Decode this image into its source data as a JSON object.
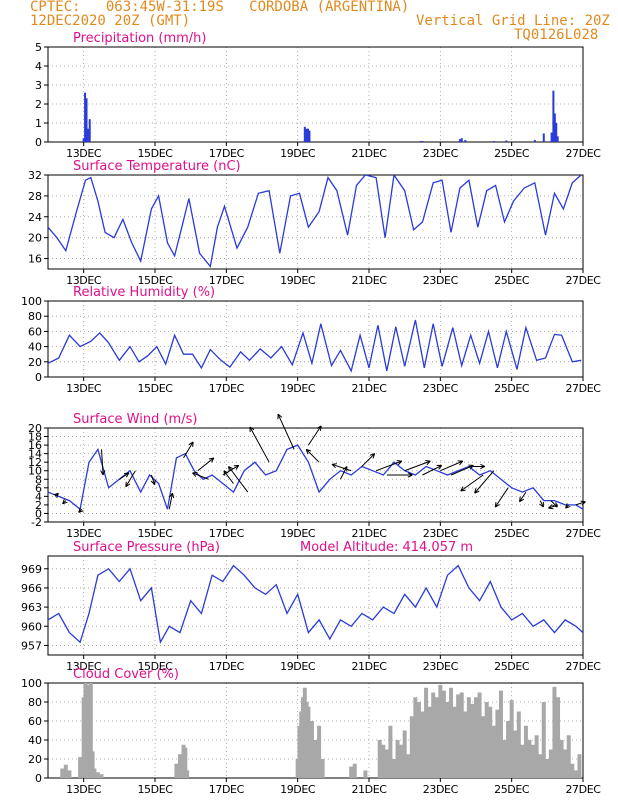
{
  "header": {
    "line1": "CPTEC:   063:45W-31:19S   CORDOBA (ARGENTINA)",
    "line2": "12DEC2020 20Z (GMT)",
    "grid_note": "Vertical Grid Line: 20Z",
    "code": "TQ0126L028"
  },
  "colors": {
    "header": "#e08a1e",
    "panel_title": "#e0108a",
    "series": "#2a3bd8",
    "cloud": "#a8a8a8",
    "wind_arrow": "#000000",
    "grid": "#9a9a9a"
  },
  "chart_data": [
    {
      "type": "bar",
      "title": "Precipitation (mm/h)",
      "xlim": [
        12.0,
        27.0
      ],
      "ylim": [
        0,
        5
      ],
      "yticks": [
        0,
        1,
        2,
        3,
        4,
        5
      ],
      "x_tick_values": [
        13,
        15,
        17,
        19,
        21,
        23,
        25,
        27
      ],
      "x_tick_labels": [
        "13DEC",
        "15DEC",
        "17DEC",
        "19DEC",
        "21DEC",
        "23DEC",
        "25DEC",
        "27DEC"
      ],
      "grid": true,
      "x": [
        13.0,
        13.04,
        13.08,
        13.12,
        13.17,
        19.2,
        19.25,
        19.29,
        19.33,
        22.45,
        22.5,
        23.55,
        23.6,
        23.7,
        24.5,
        24.85,
        25.65,
        25.9,
        26.12,
        26.17,
        26.21,
        26.25,
        26.29
      ],
      "values": [
        0.2,
        2.6,
        2.3,
        0.7,
        1.2,
        0.8,
        0.7,
        0.7,
        0.6,
        0.05,
        0.05,
        0.15,
        0.2,
        0.1,
        0.05,
        0.08,
        0.1,
        0.45,
        0.5,
        2.7,
        1.5,
        1.0,
        0.3
      ]
    },
    {
      "type": "line",
      "title": "Surface Temperature (nC)",
      "xlim": [
        12.0,
        27.0
      ],
      "ylim": [
        14,
        32
      ],
      "yticks": [
        16,
        20,
        24,
        28,
        32
      ],
      "x_tick_values": [
        13,
        15,
        17,
        19,
        21,
        23,
        25,
        27
      ],
      "x_tick_labels": [
        "13DEC",
        "15DEC",
        "17DEC",
        "19DEC",
        "21DEC",
        "23DEC",
        "25DEC",
        "27DEC"
      ],
      "grid": true,
      "x": [
        12.0,
        12.25,
        12.5,
        12.8,
        13.05,
        13.2,
        13.4,
        13.6,
        13.85,
        14.1,
        14.35,
        14.6,
        14.9,
        15.1,
        15.35,
        15.55,
        15.75,
        15.95,
        16.25,
        16.55,
        16.75,
        16.95,
        17.3,
        17.6,
        17.9,
        18.2,
        18.5,
        18.8,
        19.05,
        19.3,
        19.6,
        19.85,
        20.1,
        20.4,
        20.65,
        20.9,
        21.2,
        21.45,
        21.7,
        22.0,
        22.25,
        22.5,
        22.8,
        23.05,
        23.3,
        23.55,
        23.8,
        24.05,
        24.3,
        24.55,
        24.8,
        25.05,
        25.35,
        25.65,
        25.95,
        26.2,
        26.45,
        26.7,
        26.95
      ],
      "y": [
        22,
        20,
        17.5,
        25,
        31,
        31.5,
        27,
        21,
        20,
        23.5,
        19,
        15.5,
        25.5,
        28,
        19,
        16.5,
        22,
        27.5,
        17,
        14.5,
        22,
        26,
        18,
        22,
        28.5,
        29,
        17,
        28,
        28.5,
        22,
        25,
        31.5,
        29,
        20.5,
        30,
        32,
        31.5,
        20,
        32,
        29,
        21.5,
        23,
        30.5,
        31,
        21,
        29.5,
        31,
        22,
        29,
        30,
        23,
        27,
        29.5,
        30.5,
        20.5,
        28.5,
        25.5,
        30.5,
        32
      ]
    },
    {
      "type": "line",
      "title": "Relative Humidity (%)",
      "xlim": [
        12.0,
        27.0
      ],
      "ylim": [
        0,
        100
      ],
      "yticks": [
        0,
        20,
        40,
        60,
        80,
        100
      ],
      "x_tick_values": [
        13,
        15,
        17,
        19,
        21,
        23,
        25,
        27
      ],
      "x_tick_labels": [
        "13DEC",
        "15DEC",
        "17DEC",
        "19DEC",
        "21DEC",
        "23DEC",
        "25DEC",
        "27DEC"
      ],
      "grid": true,
      "x": [
        12.0,
        12.3,
        12.6,
        12.9,
        13.2,
        13.45,
        13.7,
        14.0,
        14.3,
        14.55,
        14.8,
        15.05,
        15.3,
        15.55,
        15.8,
        16.05,
        16.3,
        16.55,
        16.85,
        17.1,
        17.4,
        17.65,
        17.95,
        18.25,
        18.55,
        18.85,
        19.15,
        19.4,
        19.65,
        19.95,
        20.2,
        20.5,
        20.75,
        21.0,
        21.25,
        21.5,
        21.75,
        22.0,
        22.3,
        22.55,
        22.8,
        23.05,
        23.35,
        23.6,
        23.85,
        24.1,
        24.35,
        24.6,
        24.85,
        25.15,
        25.4,
        25.7,
        25.95,
        26.2,
        26.4,
        26.7,
        26.95
      ],
      "y": [
        18,
        25,
        55,
        40,
        47,
        58,
        45,
        22,
        40,
        20,
        28,
        40,
        17,
        55,
        30,
        30,
        12,
        36,
        22,
        13,
        33,
        22,
        37,
        25,
        40,
        16,
        58,
        18,
        70,
        15,
        35,
        8,
        55,
        12,
        68,
        8,
        66,
        14,
        75,
        12,
        70,
        14,
        65,
        15,
        55,
        18,
        60,
        12,
        60,
        10,
        65,
        22,
        25,
        56,
        55,
        20,
        22
      ]
    },
    {
      "type": "line",
      "title": "Surface Wind (m/s)",
      "xlim": [
        12.0,
        27.0
      ],
      "ylim": [
        -2,
        20
      ],
      "yticks": [
        -2,
        0,
        2,
        4,
        6,
        8,
        10,
        12,
        14,
        16,
        18,
        20
      ],
      "x_tick_values": [
        13,
        15,
        17,
        19,
        21,
        23,
        25,
        27
      ],
      "x_tick_labels": [
        "13DEC",
        "15DEC",
        "17DEC",
        "19DEC",
        "21DEC",
        "23DEC",
        "25DEC",
        "27DEC"
      ],
      "grid": true,
      "x": [
        12.0,
        12.3,
        12.6,
        12.9,
        13.15,
        13.4,
        13.7,
        14.0,
        14.3,
        14.6,
        14.85,
        15.1,
        15.35,
        15.6,
        15.85,
        16.1,
        16.35,
        16.6,
        16.9,
        17.2,
        17.5,
        17.8,
        18.1,
        18.4,
        18.7,
        19.0,
        19.3,
        19.6,
        19.9,
        20.2,
        20.5,
        20.8,
        21.1,
        21.4,
        21.7,
        22.0,
        22.3,
        22.6,
        22.9,
        23.2,
        23.5,
        23.8,
        24.1,
        24.4,
        24.7,
        25.0,
        25.3,
        25.6,
        25.9,
        26.2,
        26.5,
        26.8,
        27.0
      ],
      "y": [
        5,
        4,
        3,
        1,
        12,
        15,
        6,
        8,
        10,
        5,
        9,
        7,
        1,
        13,
        14,
        10,
        8,
        9,
        7,
        5,
        10,
        12,
        9,
        10,
        15,
        16,
        12,
        5,
        8,
        10,
        9,
        11,
        10,
        9,
        12,
        10,
        9,
        11,
        10,
        9,
        10,
        11,
        9,
        10,
        8,
        6,
        5,
        6,
        3,
        3,
        2,
        2,
        1
      ],
      "vectors": {
        "x": [
          12.2,
          12.5,
          12.95,
          13.5,
          14.0,
          14.45,
          14.9,
          15.4,
          15.8,
          16.2,
          16.5,
          16.9,
          17.2,
          17.6,
          18.2,
          18.9,
          19.3,
          19.6,
          20.2,
          20.5,
          20.8,
          21.2,
          21.5,
          22.0,
          22.5,
          23.0,
          23.3,
          23.8,
          24.2,
          24.5,
          24.9,
          25.4,
          25.8,
          26.1,
          26.3,
          26.6,
          26.8
        ],
        "u": [
          1,
          -1,
          -1,
          0.5,
          3,
          -3,
          1,
          1,
          3,
          5,
          -5,
          5,
          -3,
          -6,
          -6,
          -5,
          4,
          -4,
          2,
          -6,
          4,
          8,
          8,
          8,
          6,
          7,
          7,
          5,
          -7,
          -6,
          -4,
          -2,
          1,
          2,
          -3,
          -1,
          3
        ],
        "v": [
          1,
          -1,
          -1,
          -8,
          2,
          -5,
          -3,
          5,
          5,
          4,
          2,
          3,
          4,
          8,
          11,
          11,
          6,
          4,
          4,
          2,
          4,
          3,
          0,
          3,
          3,
          3,
          3,
          0,
          -5,
          -7,
          -6,
          -3,
          -2,
          -2,
          -1,
          -1,
          1
        ]
      }
    },
    {
      "type": "line",
      "title": "Surface Pressure (hPa)",
      "annotation": "Model Altitude: 414.057 m",
      "xlim": [
        12.0,
        27.0
      ],
      "ylim": [
        955.5,
        971
      ],
      "yticks": [
        957,
        960,
        963,
        966,
        969
      ],
      "x_tick_values": [
        13,
        15,
        17,
        19,
        21,
        23,
        25,
        27
      ],
      "x_tick_labels": [
        "13DEC",
        "15DEC",
        "17DEC",
        "19DEC",
        "21DEC",
        "23DEC",
        "25DEC",
        "27DEC"
      ],
      "grid": true,
      "x": [
        12.0,
        12.3,
        12.6,
        12.9,
        13.15,
        13.4,
        13.7,
        14.0,
        14.3,
        14.6,
        14.9,
        15.15,
        15.4,
        15.7,
        16.0,
        16.3,
        16.6,
        16.9,
        17.2,
        17.5,
        17.8,
        18.1,
        18.4,
        18.7,
        19.0,
        19.3,
        19.6,
        19.9,
        20.2,
        20.5,
        20.8,
        21.1,
        21.4,
        21.7,
        22.0,
        22.3,
        22.6,
        22.9,
        23.2,
        23.5,
        23.8,
        24.1,
        24.4,
        24.7,
        25.0,
        25.3,
        25.6,
        25.9,
        26.2,
        26.5,
        26.8,
        27.0
      ],
      "y": [
        961,
        962,
        959,
        957.5,
        962,
        968,
        969,
        967,
        969,
        964,
        966,
        957.5,
        960,
        959,
        964,
        962,
        968,
        967,
        969.5,
        968,
        966,
        965,
        966.5,
        962,
        965,
        959,
        961,
        958,
        961,
        960,
        962,
        961,
        963,
        962,
        965,
        963,
        966,
        963,
        968,
        969.5,
        966,
        964,
        967,
        963,
        961,
        962,
        960,
        961,
        959,
        961,
        960,
        959
      ]
    },
    {
      "type": "bar",
      "title": "Cloud Cover (%)",
      "xlim": [
        12.0,
        27.0
      ],
      "ylim": [
        0,
        100
      ],
      "yticks": [
        0,
        20,
        40,
        60,
        80,
        100
      ],
      "x_tick_values": [
        13,
        15,
        17,
        19,
        21,
        23,
        25,
        27
      ],
      "x_tick_labels": [
        "13DEC",
        "15DEC",
        "17DEC",
        "19DEC",
        "21DEC",
        "23DEC",
        "25DEC",
        "27DEC"
      ],
      "grid": true,
      "x": [
        12.4,
        12.5,
        12.6,
        12.9,
        13.0,
        13.05,
        13.1,
        13.15,
        13.2,
        13.25,
        13.3,
        13.4,
        13.5,
        15.6,
        15.7,
        15.8,
        15.85,
        15.9,
        19.0,
        19.05,
        19.1,
        19.15,
        19.2,
        19.25,
        19.3,
        19.4,
        19.5,
        19.6,
        19.7,
        20.5,
        20.6,
        20.9,
        21.3,
        21.4,
        21.5,
        21.6,
        21.7,
        21.8,
        21.9,
        22.0,
        22.1,
        22.2,
        22.3,
        22.4,
        22.5,
        22.6,
        22.7,
        22.8,
        22.9,
        23.0,
        23.1,
        23.2,
        23.3,
        23.4,
        23.5,
        23.6,
        23.7,
        23.8,
        23.9,
        24.0,
        24.1,
        24.2,
        24.3,
        24.4,
        24.5,
        24.6,
        24.7,
        24.8,
        24.9,
        25.0,
        25.1,
        25.2,
        25.3,
        25.4,
        25.5,
        25.6,
        25.7,
        25.8,
        25.9,
        26.0,
        26.1,
        26.2,
        26.3,
        26.4,
        26.5,
        26.6,
        26.7,
        26.8,
        26.9
      ],
      "values": [
        10,
        14,
        8,
        22,
        85,
        100,
        98,
        90,
        100,
        28,
        10,
        6,
        4,
        15,
        25,
        35,
        32,
        8,
        20,
        55,
        70,
        85,
        95,
        80,
        75,
        60,
        40,
        55,
        20,
        12,
        15,
        8,
        40,
        35,
        30,
        55,
        20,
        40,
        35,
        50,
        25,
        65,
        85,
        80,
        70,
        95,
        75,
        90,
        85,
        98,
        92,
        80,
        95,
        75,
        88,
        90,
        70,
        85,
        78,
        85,
        90,
        65,
        80,
        75,
        55,
        72,
        92,
        40,
        60,
        82,
        50,
        70,
        35,
        55,
        40,
        35,
        45,
        25,
        80,
        20,
        30,
        96,
        85,
        40,
        30,
        45,
        15,
        8,
        25
      ]
    }
  ]
}
